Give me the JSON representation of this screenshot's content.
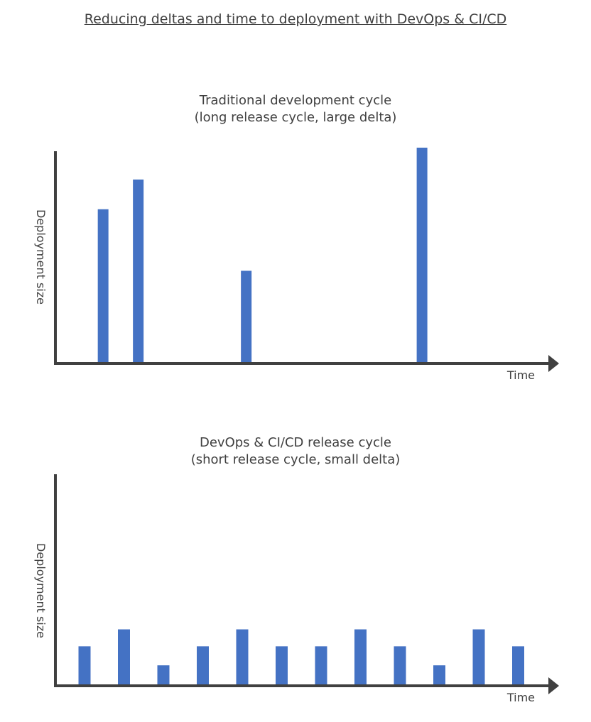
{
  "title": "Reducing deltas and time to deployment with DevOps & CI/CD",
  "colors": {
    "bar": "#4472c4",
    "axis": "#404040"
  },
  "chart_data": [
    {
      "type": "bar",
      "title": "Traditional development cycle",
      "subtitle": "(long release cycle, large delta)",
      "xlabel": "Time",
      "ylabel": "Deployment size",
      "x": [
        9.5,
        16.5,
        38,
        73
      ],
      "values": [
        72,
        86,
        43,
        101
      ],
      "xlim": [
        0,
        100
      ],
      "ylim": [
        0,
        100
      ],
      "grid": false
    },
    {
      "type": "bar",
      "title": "DevOps & CI/CD release cycle",
      "subtitle": "(short release cycle, small delta)",
      "xlabel": "Time",
      "ylabel": "Deployment size",
      "x": [
        1,
        2,
        3,
        4,
        5,
        6,
        7,
        8,
        9,
        10,
        11,
        12
      ],
      "values": [
        18,
        26,
        9,
        18,
        26,
        18,
        18,
        26,
        18,
        9,
        26,
        18
      ],
      "ylim": [
        0,
        100
      ],
      "grid": false
    }
  ]
}
